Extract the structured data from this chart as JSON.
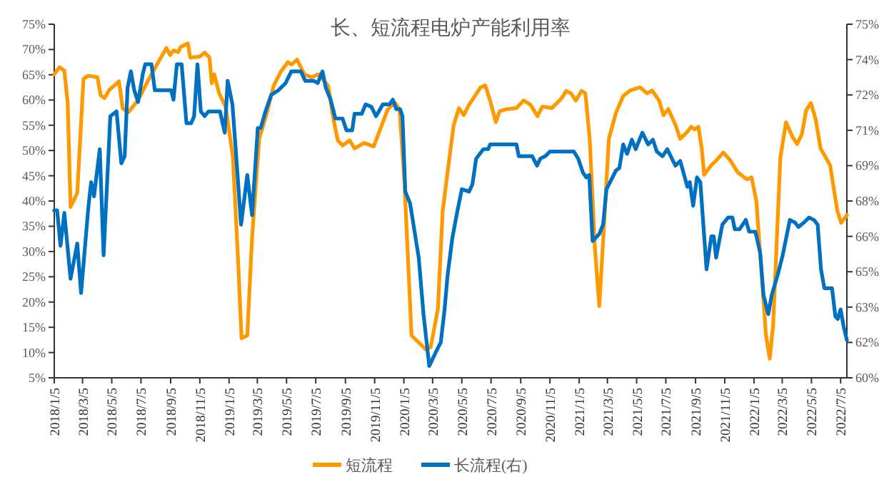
{
  "chart_data": {
    "type": "line",
    "title": "长、短流程电炉产能利用率",
    "legend": "bottom",
    "grid": false,
    "line_style": "solid",
    "xlim": [
      "2018-01-05",
      "2022-07-18"
    ],
    "xticks": [
      {
        "value": "2018-01-05",
        "label": "2018/1/5"
      },
      {
        "value": "2018-03-05",
        "label": "2018/3/5"
      },
      {
        "value": "2018-05-05",
        "label": "2018/5/5"
      },
      {
        "value": "2018-07-05",
        "label": "2018/7/5"
      },
      {
        "value": "2018-09-05",
        "label": "2018/9/5"
      },
      {
        "value": "2018-11-05",
        "label": "2018/11/5"
      },
      {
        "value": "2019-01-05",
        "label": "2019/1/5"
      },
      {
        "value": "2019-03-05",
        "label": "2019/3/5"
      },
      {
        "value": "2019-05-05",
        "label": "2019/5/5"
      },
      {
        "value": "2019-07-05",
        "label": "2019/7/5"
      },
      {
        "value": "2019-09-05",
        "label": "2019/9/5"
      },
      {
        "value": "2019-11-05",
        "label": "2019/11/5"
      },
      {
        "value": "2020-01-05",
        "label": "2020/1/5"
      },
      {
        "value": "2020-03-05",
        "label": "2020/3/5"
      },
      {
        "value": "2020-05-05",
        "label": "2020/5/5"
      },
      {
        "value": "2020-07-05",
        "label": "2020/7/5"
      },
      {
        "value": "2020-09-05",
        "label": "2020/9/5"
      },
      {
        "value": "2020-11-05",
        "label": "2020/11/5"
      },
      {
        "value": "2021-01-05",
        "label": "2021/1/5"
      },
      {
        "value": "2021-03-05",
        "label": "2021/3/5"
      },
      {
        "value": "2021-05-05",
        "label": "2021/5/5"
      },
      {
        "value": "2021-07-05",
        "label": "2021/7/5"
      },
      {
        "value": "2021-09-05",
        "label": "2021/9/5"
      },
      {
        "value": "2021-11-05",
        "label": "2021/11/5"
      },
      {
        "value": "2022-01-05",
        "label": "2022/1/5"
      },
      {
        "value": "2022-03-05",
        "label": "2022/3/5"
      },
      {
        "value": "2022-05-05",
        "label": "2022/5/5"
      },
      {
        "value": "2022-07-05",
        "label": "2022/7/5"
      }
    ],
    "ylim": [
      5,
      75
    ],
    "yticks": [
      {
        "value": 5,
        "label": "5%"
      },
      {
        "value": 10,
        "label": "10%"
      },
      {
        "value": 15,
        "label": "15%"
      },
      {
        "value": 20,
        "label": "20%"
      },
      {
        "value": 25,
        "label": "25%"
      },
      {
        "value": 30,
        "label": "30%"
      },
      {
        "value": 35,
        "label": "35%"
      },
      {
        "value": 40,
        "label": "40%"
      },
      {
        "value": 45,
        "label": "45%"
      },
      {
        "value": 50,
        "label": "50%"
      },
      {
        "value": 55,
        "label": "55%"
      },
      {
        "value": 60,
        "label": "60%"
      },
      {
        "value": 65,
        "label": "65%"
      },
      {
        "value": 70,
        "label": "70%"
      },
      {
        "value": 75,
        "label": "75%"
      }
    ],
    "y2lim": [
      60,
      75
    ],
    "y2ticks": [
      {
        "value": 60,
        "label": "60%"
      },
      {
        "value": 61.5,
        "label": "62%"
      },
      {
        "value": 63,
        "label": "63%"
      },
      {
        "value": 64.5,
        "label": "65%"
      },
      {
        "value": 66,
        "label": "66%"
      },
      {
        "value": 67.5,
        "label": "68%"
      },
      {
        "value": 69,
        "label": "69%"
      },
      {
        "value": 70.5,
        "label": "71%"
      },
      {
        "value": 72,
        "label": "72%"
      },
      {
        "value": 73.5,
        "label": "74%"
      },
      {
        "value": 75,
        "label": "75%"
      }
    ],
    "series": [
      {
        "name": "短流程",
        "color": "#ff9900",
        "x": [
          "2018-01-05",
          "2018-01-16",
          "2018-01-26",
          "2018-02-02",
          "2018-02-08",
          "2018-02-22",
          "2018-03-07",
          "2018-03-17",
          "2018-04-05",
          "2018-04-12",
          "2018-04-20",
          "2018-04-30",
          "2018-05-20",
          "2018-05-28",
          "2018-06-09",
          "2018-06-29",
          "2018-07-19",
          "2018-08-02",
          "2018-08-27",
          "2018-09-04",
          "2018-09-11",
          "2018-09-21",
          "2018-09-26",
          "2018-10-11",
          "2018-10-16",
          "2018-11-05",
          "2018-11-15",
          "2018-11-25",
          "2018-11-30",
          "2018-12-05",
          "2018-12-15",
          "2018-12-29",
          "2019-01-13",
          "2019-01-24",
          "2019-01-31",
          "2019-02-12",
          "2019-02-22",
          "2019-03-09",
          "2019-03-24",
          "2019-04-08",
          "2019-04-23",
          "2019-05-08",
          "2019-05-15",
          "2019-05-27",
          "2019-06-11",
          "2019-06-26",
          "2019-07-11",
          "2019-07-31",
          "2019-08-10",
          "2019-08-20",
          "2019-08-30",
          "2019-09-14",
          "2019-09-24",
          "2019-10-14",
          "2019-11-03",
          "2019-11-17",
          "2019-12-02",
          "2019-12-17",
          "2019-12-27",
          "2020-01-06",
          "2020-01-21",
          "2020-02-20",
          "2020-03-01",
          "2020-03-16",
          "2020-03-26",
          "2020-04-09",
          "2020-04-18",
          "2020-04-29",
          "2020-05-09",
          "2020-05-19",
          "2020-05-29",
          "2020-06-13",
          "2020-06-23",
          "2020-07-03",
          "2020-07-15",
          "2020-07-23",
          "2020-08-07",
          "2020-08-27",
          "2020-09-11",
          "2020-09-25",
          "2020-10-10",
          "2020-10-20",
          "2020-11-09",
          "2020-11-29",
          "2020-12-09",
          "2020-12-19",
          "2020-12-29",
          "2021-01-10",
          "2021-01-18",
          "2021-01-27",
          "2021-02-07",
          "2021-02-16",
          "2021-02-26",
          "2021-03-08",
          "2021-03-23",
          "2021-04-07",
          "2021-04-22",
          "2021-05-12",
          "2021-05-27",
          "2021-06-06",
          "2021-06-21",
          "2021-06-30",
          "2021-07-10",
          "2021-07-25",
          "2021-08-04",
          "2021-08-19",
          "2021-08-27",
          "2021-09-03",
          "2021-09-11",
          "2021-09-18",
          "2021-09-23",
          "2021-10-08",
          "2021-10-18",
          "2021-11-02",
          "2021-11-17",
          "2021-12-02",
          "2021-12-21",
          "2021-12-31",
          "2022-01-10",
          "2022-01-20",
          "2022-01-30",
          "2022-02-07",
          "2022-02-14",
          "2022-03-01",
          "2022-03-13",
          "2022-03-26",
          "2022-04-05",
          "2022-04-15",
          "2022-04-24",
          "2022-05-04",
          "2022-05-14",
          "2022-05-24",
          "2022-06-13",
          "2022-06-28",
          "2022-07-06",
          "2022-07-18"
        ],
        "values": [
          65.1,
          66.5,
          65.8,
          59.5,
          38.8,
          41.6,
          64.2,
          64.8,
          64.5,
          60.9,
          60.4,
          62,
          63.7,
          58.3,
          57.6,
          60,
          63.7,
          66.1,
          70.3,
          68.9,
          69.8,
          69.5,
          70.5,
          71.2,
          68.4,
          68.6,
          69.4,
          68.4,
          63.3,
          65.1,
          61.4,
          58.6,
          48.7,
          28,
          12.8,
          13.4,
          32.7,
          52.4,
          57.1,
          62.8,
          65.6,
          67.5,
          67,
          68,
          65.1,
          64.5,
          65.1,
          62.8,
          56.7,
          52,
          51,
          52,
          50.4,
          51.5,
          50.8,
          54.3,
          58.1,
          59.5,
          58.1,
          44,
          13.4,
          10.6,
          11.1,
          18.6,
          38,
          48.5,
          55,
          58.4,
          57,
          58.9,
          60.3,
          62.5,
          62.9,
          59.9,
          55.6,
          57.8,
          58.2,
          58.4,
          59.9,
          59.1,
          56.8,
          58.7,
          58.4,
          60.3,
          61.8,
          61.3,
          59.9,
          61.8,
          61.3,
          52.3,
          30.5,
          19.2,
          35.3,
          52.3,
          57.5,
          60.8,
          61.9,
          62.5,
          61.3,
          61.9,
          59.9,
          57,
          58.2,
          55.1,
          52.3,
          53.7,
          54.7,
          54.2,
          54.7,
          50.4,
          45.2,
          47.1,
          48,
          49.6,
          48,
          45.7,
          44.3,
          44.7,
          40,
          26.8,
          13.5,
          8.8,
          15.4,
          48.5,
          55.6,
          52.8,
          51.3,
          53.2,
          58,
          59.4,
          56.1,
          50.4,
          47.1,
          38.1,
          35.7,
          37.2
        ]
      },
      {
        "name": "长流程(右)",
        "color": "#0070c0",
        "axis": "y2",
        "x": [
          "2018-01-05",
          "2018-01-11",
          "2018-01-18",
          "2018-01-26",
          "2018-02-08",
          "2018-02-22",
          "2018-03-02",
          "2018-03-17",
          "2018-03-23",
          "2018-03-29",
          "2018-04-10",
          "2018-04-18",
          "2018-05-02",
          "2018-05-15",
          "2018-05-25",
          "2018-06-01",
          "2018-06-07",
          "2018-06-14",
          "2018-06-21",
          "2018-06-29",
          "2018-07-09",
          "2018-07-14",
          "2018-07-27",
          "2018-08-03",
          "2018-09-06",
          "2018-09-11",
          "2018-09-18",
          "2018-09-28",
          "2018-10-08",
          "2018-10-18",
          "2018-10-24",
          "2018-10-31",
          "2018-11-07",
          "2018-11-15",
          "2018-11-23",
          "2018-12-17",
          "2018-12-27",
          "2019-01-02",
          "2019-01-12",
          "2019-01-21",
          "2019-01-30",
          "2019-02-12",
          "2019-02-22",
          "2019-03-06",
          "2019-03-12",
          "2019-03-22",
          "2019-04-03",
          "2019-04-18",
          "2019-05-03",
          "2019-05-15",
          "2019-06-04",
          "2019-06-13",
          "2019-07-01",
          "2019-07-09",
          "2019-07-19",
          "2019-07-26",
          "2019-08-05",
          "2019-08-15",
          "2019-08-30",
          "2019-09-07",
          "2019-09-19",
          "2019-09-24",
          "2019-10-09",
          "2019-10-17",
          "2019-10-29",
          "2019-11-08",
          "2019-11-22",
          "2019-12-06",
          "2019-12-13",
          "2019-12-20",
          "2019-12-28",
          "2020-01-02",
          "2020-01-08",
          "2020-01-18",
          "2020-02-05",
          "2020-02-15",
          "2020-02-27",
          "2020-03-12",
          "2020-03-22",
          "2020-03-30",
          "2020-04-05",
          "2020-04-15",
          "2020-04-25",
          "2020-05-05",
          "2020-05-20",
          "2020-05-27",
          "2020-06-04",
          "2020-06-19",
          "2020-06-29",
          "2020-07-03",
          "2020-08-27",
          "2020-09-01",
          "2020-09-29",
          "2020-10-09",
          "2020-10-16",
          "2020-10-26",
          "2020-11-05",
          "2020-12-25",
          "2021-01-03",
          "2021-01-13",
          "2021-01-20",
          "2021-01-26",
          "2021-02-02",
          "2021-02-16",
          "2021-02-24",
          "2021-03-03",
          "2021-03-13",
          "2021-03-23",
          "2021-03-30",
          "2021-04-07",
          "2021-04-15",
          "2021-04-25",
          "2021-05-03",
          "2021-05-17",
          "2021-05-29",
          "2021-06-08",
          "2021-06-16",
          "2021-06-28",
          "2021-07-08",
          "2021-07-25",
          "2021-08-04",
          "2021-08-19",
          "2021-08-24",
          "2021-08-31",
          "2021-09-08",
          "2021-09-15",
          "2021-09-28",
          "2021-10-08",
          "2021-10-13",
          "2021-10-18",
          "2021-10-31",
          "2021-11-12",
          "2021-11-21",
          "2021-11-26",
          "2021-12-06",
          "2021-12-19",
          "2021-12-26",
          "2022-01-08",
          "2022-01-18",
          "2022-01-25",
          "2022-02-04",
          "2022-02-11",
          "2022-02-24",
          "2022-03-06",
          "2022-03-21",
          "2022-03-31",
          "2022-04-08",
          "2022-04-20",
          "2022-04-30",
          "2022-05-10",
          "2022-05-18",
          "2022-05-25",
          "2022-06-01",
          "2022-06-17",
          "2022-06-24",
          "2022-06-29",
          "2022-07-05",
          "2022-07-11",
          "2022-07-18"
        ],
        "values": [
          67.1,
          67.1,
          65.6,
          67,
          64.2,
          65.7,
          63.6,
          67.2,
          68.3,
          67.7,
          69.7,
          65.2,
          71.1,
          71.3,
          69.1,
          69.4,
          72.3,
          73,
          72.2,
          71.7,
          72.9,
          73.3,
          73.3,
          72.2,
          72.2,
          71.8,
          73.3,
          73.3,
          70.8,
          70.8,
          71.1,
          73.3,
          71.3,
          71.1,
          71.3,
          71.3,
          70.4,
          72.6,
          71.6,
          69.1,
          66.5,
          68.6,
          66.9,
          70.6,
          70.6,
          71.3,
          72,
          72.2,
          72.5,
          73,
          73,
          72.6,
          72.6,
          72.5,
          73,
          72.3,
          71.8,
          71,
          71,
          70.5,
          70.5,
          71.2,
          71.2,
          71.6,
          71.5,
          71.1,
          71.6,
          71.6,
          71.8,
          71.4,
          71.4,
          71.1,
          67.9,
          67.4,
          65.1,
          62.7,
          60.5,
          61.1,
          61.5,
          62.9,
          64.3,
          65.9,
          67,
          68,
          67.9,
          68.2,
          69.3,
          69.7,
          69.7,
          69.9,
          69.9,
          69.4,
          69.4,
          69,
          69.3,
          69.4,
          69.6,
          69.6,
          69.3,
          68.7,
          68.5,
          68.6,
          65.8,
          66.1,
          66.5,
          68,
          68.4,
          68.8,
          68.9,
          69.9,
          69.5,
          70.1,
          69.7,
          70.4,
          69.9,
          70.1,
          69.6,
          69.4,
          69.7,
          69,
          69.2,
          68.1,
          68.3,
          67.3,
          68.5,
          68.3,
          64.6,
          66,
          66,
          65.1,
          66.5,
          66.8,
          66.8,
          66.3,
          66.3,
          66.7,
          66.2,
          66.2,
          65.3,
          63.5,
          62.7,
          63.5,
          64.4,
          65.2,
          66.7,
          66.6,
          66.4,
          66.6,
          66.8,
          66.7,
          66.5,
          64.6,
          63.8,
          63.8,
          62.6,
          62.5,
          62.9,
          62.2,
          61.6
        ]
      }
    ]
  }
}
